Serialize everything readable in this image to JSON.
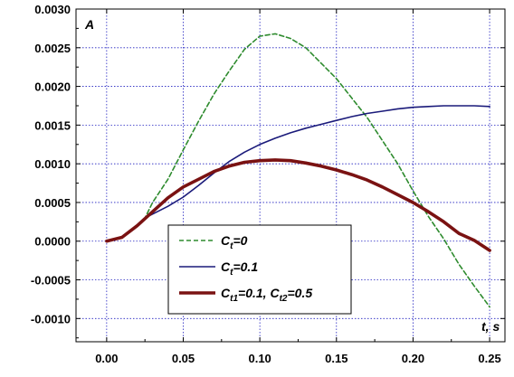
{
  "chart_data": {
    "type": "line",
    "ylabel": "A",
    "xlabel": "t, s",
    "xlim": [
      -0.02,
      0.26
    ],
    "ylim": [
      -0.0013,
      0.003
    ],
    "x_ticks": [
      0.0,
      0.05,
      0.1,
      0.15,
      0.2,
      0.25
    ],
    "x_tick_labels": [
      "0.00",
      "0.05",
      "0.10",
      "0.15",
      "0.20",
      "0.25"
    ],
    "y_ticks": [
      -0.001,
      -0.0005,
      0.0,
      0.0005,
      0.001,
      0.0015,
      0.002,
      0.0025,
      0.003
    ],
    "y_tick_labels": [
      "-0.0010",
      "-0.0005",
      "0.0000",
      "0.0005",
      "0.0010",
      "0.0015",
      "0.0020",
      "0.0025",
      "0.0030"
    ],
    "grid": true,
    "legend_position": "bottom-center",
    "series": [
      {
        "name": "C_t=0",
        "legend": {
          "base": "C",
          "sub": "t",
          "rest": "=0"
        },
        "color": "#2e8b2e",
        "style": "dashed",
        "x": [
          0.0,
          0.01,
          0.02,
          0.025,
          0.03,
          0.04,
          0.05,
          0.06,
          0.07,
          0.08,
          0.09,
          0.1,
          0.11,
          0.12,
          0.13,
          0.14,
          0.15,
          0.16,
          0.17,
          0.18,
          0.19,
          0.2,
          0.21,
          0.22,
          0.23,
          0.24,
          0.25
        ],
        "y": [
          0.0,
          5e-05,
          0.0002,
          0.0003,
          0.0005,
          0.0008,
          0.00118,
          0.00155,
          0.0019,
          0.0022,
          0.00248,
          0.00265,
          0.00268,
          0.00262,
          0.0025,
          0.0023,
          0.0021,
          0.00185,
          0.0016,
          0.0013,
          0.001,
          0.00065,
          0.00032,
          3e-05,
          -0.0003,
          -0.00058,
          -0.00085
        ]
      },
      {
        "name": "C_t=0.1",
        "legend": {
          "base": "C",
          "sub": "t",
          "rest": "=0.1"
        },
        "color": "#1a1a7a",
        "style": "solid",
        "x": [
          0.0,
          0.01,
          0.02,
          0.025,
          0.03,
          0.04,
          0.05,
          0.06,
          0.07,
          0.08,
          0.09,
          0.1,
          0.11,
          0.12,
          0.13,
          0.14,
          0.15,
          0.16,
          0.17,
          0.18,
          0.19,
          0.2,
          0.21,
          0.22,
          0.23,
          0.24,
          0.25
        ],
        "y": [
          0.0,
          5e-05,
          0.0002,
          0.0003,
          0.00035,
          0.00045,
          0.00057,
          0.00072,
          0.00088,
          0.00103,
          0.00115,
          0.00125,
          0.00133,
          0.0014,
          0.00146,
          0.00151,
          0.00156,
          0.00161,
          0.00165,
          0.00168,
          0.00171,
          0.00173,
          0.00174,
          0.00175,
          0.00175,
          0.00175,
          0.00174
        ]
      },
      {
        "name": "C_t1=0.1, C_t2=0.5",
        "legend": {
          "base": "C",
          "sub": "t1",
          "rest": "=0.1, ",
          "base2": "C",
          "sub2": "t2",
          "rest2": "=0.5"
        },
        "color": "#7a1212",
        "style": "solid-thick",
        "x": [
          0.0,
          0.01,
          0.02,
          0.03,
          0.04,
          0.05,
          0.06,
          0.07,
          0.08,
          0.09,
          0.1,
          0.11,
          0.12,
          0.13,
          0.14,
          0.15,
          0.16,
          0.17,
          0.18,
          0.19,
          0.2,
          0.21,
          0.22,
          0.23,
          0.24,
          0.25
        ],
        "y": [
          0.0,
          5e-05,
          0.0002,
          0.00038,
          0.00056,
          0.0007,
          0.0008,
          0.0009,
          0.00097,
          0.00102,
          0.00104,
          0.00105,
          0.00104,
          0.00101,
          0.00097,
          0.00092,
          0.00086,
          0.00079,
          0.0007,
          0.0006,
          0.0005,
          0.00038,
          0.00025,
          0.0001,
          1e-05,
          -0.00012
        ]
      }
    ]
  }
}
